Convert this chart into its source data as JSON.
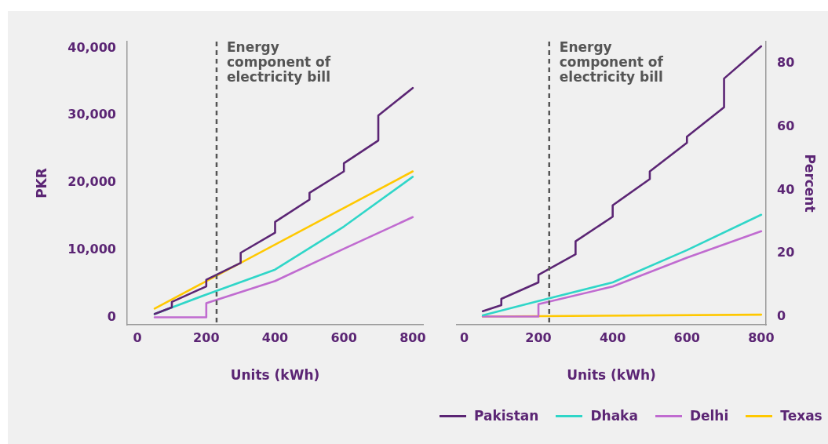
{
  "chart_data": [
    {
      "type": "line",
      "xlabel": "Units (kWh)",
      "ylabel": "PKR",
      "xlim": [
        -30,
        830
      ],
      "xticks": [
        0,
        200,
        400,
        600,
        800
      ],
      "ylim": [
        -1100,
        41000
      ],
      "yticks": [
        0,
        {
          "value": 10000,
          "label": "10,000"
        },
        {
          "value": 20000,
          "label": "20,000"
        },
        {
          "value": 30000,
          "label": "30,000"
        },
        {
          "value": 40000,
          "label": "40,000"
        }
      ],
      "ref_lines": [
        {
          "axis": "x",
          "value": 230,
          "label": "Energy component of electricity bill",
          "color": "#555555",
          "line_style": "dashed"
        }
      ],
      "series": [
        {
          "color": "#5b2574",
          "x": [
            50,
            100,
            100,
            200,
            200,
            300,
            300,
            400,
            400,
            500,
            500,
            600,
            600,
            700,
            700,
            800
          ],
          "values": [
            500,
            1500,
            2300,
            4600,
            5600,
            8100,
            9600,
            12600,
            14200,
            17500,
            18500,
            21700,
            22900,
            26300,
            30000,
            34100
          ]
        },
        {
          "color": "#2fd6c8",
          "x": [
            50,
            200,
            400,
            600,
            800
          ],
          "values": [
            500,
            3400,
            7100,
            13500,
            20900
          ]
        },
        {
          "color": "#c06bd0",
          "x": [
            50,
            200,
            200,
            400,
            600,
            800
          ],
          "values": [
            0,
            0,
            2100,
            5400,
            10200,
            14900
          ]
        },
        {
          "color": "#ffc800",
          "x": [
            50,
            800
          ],
          "values": [
            1300,
            21700
          ]
        }
      ]
    },
    {
      "type": "line",
      "xlabel": "Units (kWh)",
      "y2label": "Percent",
      "xlim": [
        -20,
        813
      ],
      "xticks": [
        0,
        200,
        400,
        600,
        800
      ],
      "y2lim": [
        -2.6,
        87
      ],
      "y2ticks": [
        0,
        20,
        40,
        60,
        80
      ],
      "legend": "bottom",
      "ref_lines": [
        {
          "axis": "x",
          "value": 229,
          "label": "Energy component of electricity bill",
          "color": "#555555",
          "line_style": "dashed"
        }
      ],
      "series": [
        {
          "name": "Pakistan",
          "color": "#5b2574",
          "axis": "y2",
          "x": [
            50,
            100,
            100,
            200,
            200,
            300,
            300,
            400,
            400,
            500,
            500,
            600,
            600,
            700,
            700,
            800
          ],
          "values": [
            1.7,
            3.6,
            5.6,
            10.8,
            13.2,
            19.7,
            23.8,
            31.6,
            35.2,
            43.5,
            45.9,
            55,
            56.9,
            66.2,
            75.3,
            85.5
          ]
        },
        {
          "name": "Dhaka",
          "color": "#2fd6c8",
          "axis": "y2",
          "x": [
            50,
            200,
            400,
            600,
            800
          ],
          "values": [
            0.4,
            4.9,
            10.8,
            21,
            32.2
          ]
        },
        {
          "name": "Delhi",
          "color": "#c06bd0",
          "axis": "y2",
          "x": [
            50,
            200,
            200,
            400,
            600,
            800
          ],
          "values": [
            0,
            0,
            3.9,
            9.5,
            18.6,
            27
          ]
        },
        {
          "name": "Texas",
          "color": "#ffc800",
          "axis": "y2",
          "x": [
            50,
            800
          ],
          "values": [
            0,
            0.6
          ]
        }
      ]
    }
  ]
}
